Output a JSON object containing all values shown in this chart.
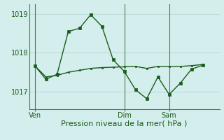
{
  "background_color": "#d4eeed",
  "grid_color": "#b8d8d4",
  "line_color": "#1a5c1a",
  "marker_color": "#1a5c1a",
  "ylabel_ticks": [
    1017,
    1018,
    1019
  ],
  "xlabel": "Pression niveau de la mer( hPa )",
  "xlim": [
    -0.5,
    16.5
  ],
  "ylim": [
    1016.55,
    1019.25
  ],
  "line1_x": [
    0,
    1,
    2,
    3,
    4,
    5,
    6,
    7,
    8,
    9,
    10,
    11,
    12,
    13,
    14,
    15
  ],
  "line1_y": [
    1017.67,
    1017.32,
    1017.45,
    1018.55,
    1018.63,
    1018.98,
    1018.68,
    1017.82,
    1017.52,
    1017.05,
    1016.82,
    1017.38,
    1016.93,
    1017.22,
    1017.58,
    1017.68
  ],
  "line2_x": [
    0,
    1,
    2,
    3,
    4,
    5,
    6,
    7,
    8,
    9,
    10,
    11,
    12,
    13,
    14,
    15
  ],
  "line2_y": [
    1017.67,
    1017.38,
    1017.42,
    1017.5,
    1017.55,
    1017.6,
    1017.62,
    1017.63,
    1017.64,
    1017.65,
    1017.6,
    1017.65,
    1017.65,
    1017.65,
    1017.67,
    1017.7
  ],
  "vline_x": [
    0,
    8,
    12
  ],
  "xtick_positions": [
    0,
    8,
    12
  ],
  "xtick_labels": [
    "Ven",
    "Dim",
    "Sam"
  ],
  "tick_label_color": "#1a5c1a",
  "axis_color": "#4a7a50",
  "xlabel_fontsize": 8,
  "ytick_fontsize": 7,
  "xtick_fontsize": 7
}
